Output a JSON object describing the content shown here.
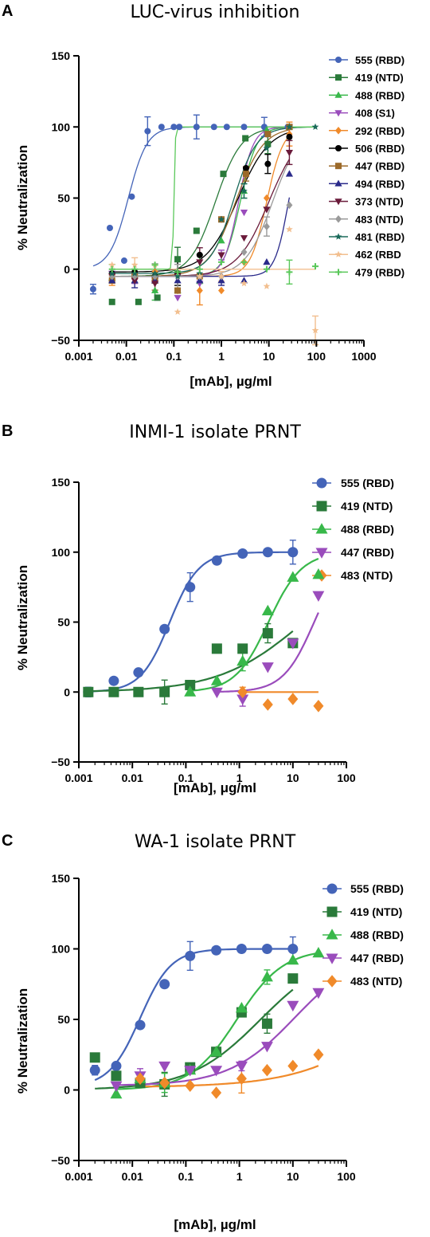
{
  "chart_data": [
    {
      "type": "scatter",
      "panel_label": "A",
      "title": "LUC-virus inhibition",
      "xlabel": "[mAb], µg/ml",
      "ylabel": "% Neutralization",
      "xscale": "log",
      "xlim": [
        0.001,
        1000
      ],
      "ylim": [
        -50,
        150
      ],
      "x_ticks": [
        "0.001",
        "0.01",
        "0.1",
        "1",
        "10",
        "100",
        "1000"
      ],
      "y_ticks": [
        "150",
        "100",
        "50",
        "0",
        "−50"
      ],
      "legend_position": "right",
      "series": [
        {
          "name": "555 (RBD)",
          "color": "#4464b8",
          "marker": "circle",
          "x": [
            0.002,
            0.0045,
            0.009,
            0.013,
            0.028,
            0.055,
            0.1,
            0.13,
            0.3,
            0.7,
            1.3,
            3,
            8,
            25
          ],
          "y": [
            -14,
            29,
            6,
            51,
            97,
            100,
            100,
            100,
            100,
            100,
            100,
            100,
            100,
            100
          ],
          "fit": {
            "bottom": 0,
            "top": 100,
            "ec50": 0.011,
            "hill": 2.2
          }
        },
        {
          "name": "419 (NTD)",
          "color": "#2a7a3a",
          "marker": "square",
          "x": [
            0.005,
            0.018,
            0.045,
            0.12,
            0.3,
            1.1,
            3.2,
            9.5
          ],
          "y": [
            -23,
            -23,
            -20,
            7,
            27,
            67,
            92,
            88
          ],
          "fit": {
            "bottom": -5,
            "top": 100,
            "ec50": 0.75,
            "hill": 1.6
          }
        },
        {
          "name": "488 (RBD)",
          "color": "#38b84a",
          "marker": "triangle",
          "x": [
            0.005,
            0.015,
            0.04,
            0.12,
            0.35,
            1,
            3,
            9,
            27
          ],
          "y": [
            -6,
            -8,
            -15,
            -15,
            -8,
            20,
            55,
            98,
            100
          ],
          "fit": {
            "bottom": -5,
            "top": 100,
            "ec50": 2.5,
            "hill": 2.5
          }
        },
        {
          "name": "408 (S1)",
          "color": "#9a4cbc",
          "marker": "triangle-down",
          "x": [
            0.005,
            0.015,
            0.04,
            0.12,
            0.35,
            1,
            3,
            9,
            27
          ],
          "y": [
            -3,
            -5,
            -8,
            -20,
            -10,
            10,
            40,
            95,
            100
          ],
          "fit": {
            "bottom": -5,
            "top": 100,
            "ec50": 2.3,
            "hill": 2.8
          }
        },
        {
          "name": "292 (RBD)",
          "color": "#f08a2a",
          "marker": "diamond",
          "x": [
            0.005,
            0.015,
            0.04,
            0.12,
            0.35,
            1,
            3,
            9,
            27
          ],
          "y": [
            -8,
            -5,
            -2,
            -15,
            -15,
            -15,
            5,
            50,
            95
          ],
          "fit": {
            "bottom": -5,
            "top": 100,
            "ec50": 9,
            "hill": 2.5
          }
        },
        {
          "name": "506 (RBD)",
          "color": "#000000",
          "marker": "circle",
          "x": [
            0.005,
            0.015,
            0.04,
            0.12,
            0.35,
            1,
            3.3,
            9.5,
            27
          ],
          "y": [
            -3,
            -2,
            -5,
            -3,
            10,
            35,
            71,
            74,
            93
          ],
          "fit": {
            "bottom": -2,
            "top": 100,
            "ec50": 2.2,
            "hill": 1.3
          }
        },
        {
          "name": "447 (RBD)",
          "color": "#9c6a2a",
          "marker": "square",
          "x": [
            0.005,
            0.015,
            0.04,
            0.12,
            0.35,
            1,
            3.3,
            9.5,
            27
          ],
          "y": [
            -8,
            -5,
            -8,
            -15,
            -5,
            35,
            67,
            95,
            100
          ],
          "fit": {
            "bottom": -5,
            "top": 100,
            "ec50": 2,
            "hill": 1.5
          }
        },
        {
          "name": "494 (RBD)",
          "color": "#2a2a8a",
          "marker": "triangle",
          "x": [
            0.005,
            0.015,
            0.04,
            0.12,
            0.35,
            1,
            3,
            9,
            27
          ],
          "y": [
            -8,
            -8,
            -8,
            -8,
            -8,
            -8,
            -8,
            5,
            67
          ],
          "fit": {
            "bottom": -5,
            "top": 100,
            "ec50": 26,
            "hill": 3
          }
        },
        {
          "name": "373 (NTD)",
          "color": "#6a1a3a",
          "marker": "triangle-down",
          "x": [
            0.005,
            0.015,
            0.04,
            0.12,
            0.35,
            1,
            3,
            9,
            27
          ],
          "y": [
            -5,
            -8,
            -10,
            -5,
            5,
            10,
            22,
            42,
            82
          ],
          "fit": {
            "bottom": -5,
            "top": 100,
            "ec50": 10,
            "hill": 1.3
          }
        },
        {
          "name": "483 (NTD)",
          "color": "#9a9a9a",
          "marker": "diamond",
          "x": [
            0.005,
            0.015,
            0.04,
            0.12,
            0.35,
            1,
            3,
            9,
            27
          ],
          "y": [
            -5,
            -5,
            -5,
            -5,
            -5,
            -5,
            12,
            30,
            45
          ],
          "fit": {
            "bottom": -5,
            "top": 100,
            "ec50": 12,
            "hill": 1.5
          }
        },
        {
          "name": "481 (RBD)",
          "color": "#1a6a5a",
          "marker": "star",
          "x": [
            0.005,
            0.015,
            0.04,
            0.12,
            0.35,
            1,
            3,
            9,
            27,
            95
          ],
          "y": [
            -3,
            -3,
            -3,
            -5,
            -3,
            35,
            55,
            85,
            100,
            100
          ],
          "fit": {
            "bottom": -3,
            "top": 100,
            "ec50": 1.8,
            "hill": 1.8
          }
        },
        {
          "name": "462 (RBD",
          "color": "#f2bf8f",
          "marker": "star",
          "x": [
            0.005,
            0.015,
            0.04,
            0.12,
            0.35,
            1,
            3,
            9,
            27,
            95
          ],
          "y": [
            3,
            3,
            3,
            -30,
            -5,
            -5,
            -10,
            -12,
            28,
            -43
          ],
          "fit": {
            "bottom": 0,
            "top": 0,
            "ec50": 1,
            "hill": 1
          }
        },
        {
          "name": "479 (RBD)",
          "color": "#5ac85a",
          "marker": "plus",
          "x": [
            0.005,
            0.015,
            0.04,
            0.12,
            0.35,
            1,
            3,
            9,
            27,
            95
          ],
          "y": [
            0,
            0,
            3,
            -2,
            0,
            5,
            5,
            0,
            -2,
            2
          ],
          "fit": {
            "bottom": 0,
            "top": 100,
            "ec50": 0.1,
            "hill": 30
          }
        }
      ]
    },
    {
      "type": "scatter",
      "panel_label": "B",
      "title": "INMI-1 isolate PRNT",
      "xlabel": "[mAb], μg/ml",
      "ylabel": "% Neutralization",
      "xscale": "log",
      "xlim": [
        0.001,
        100
      ],
      "ylim": [
        -50,
        150
      ],
      "x_ticks": [
        "0.001",
        "0.01",
        "0.1",
        "1",
        "10",
        "100"
      ],
      "y_ticks": [
        "150",
        "100",
        "50",
        "0",
        "−50"
      ],
      "legend_position": "top-right",
      "series": [
        {
          "name": "555 (RBD)",
          "color": "#4464b8",
          "marker": "circle",
          "x": [
            0.0015,
            0.0045,
            0.013,
            0.04,
            0.12,
            0.38,
            1.15,
            3.4,
            10
          ],
          "y": [
            0,
            8,
            14,
            45,
            75,
            94,
            99,
            100,
            100
          ],
          "fit": {
            "bottom": 0,
            "top": 100,
            "ec50": 0.05,
            "hill": 1.6
          }
        },
        {
          "name": "419 (NTD)",
          "color": "#2a7a3a",
          "marker": "square",
          "x": [
            0.0015,
            0.0045,
            0.013,
            0.04,
            0.12,
            0.38,
            1.15,
            3.4,
            10
          ],
          "y": [
            0,
            0,
            0,
            0,
            5,
            31,
            31,
            42,
            35
          ],
          "fit": {
            "bottom": 0,
            "top": 100,
            "ec50": 16,
            "hill": 0.55
          }
        },
        {
          "name": "488 (RBD)",
          "color": "#38b84a",
          "marker": "triangle",
          "x": [
            0.12,
            0.38,
            1.15,
            3.4,
            10,
            30
          ],
          "y": [
            0,
            8,
            22,
            58,
            82,
            84
          ],
          "fit": {
            "bottom": 0,
            "top": 100,
            "ec50": 3.5,
            "hill": 1.4
          }
        },
        {
          "name": "447 (RBD)",
          "color": "#9a4cbc",
          "marker": "triangle-down",
          "x": [
            0.38,
            1.15,
            3.4,
            10,
            30
          ],
          "y": [
            0,
            -5,
            18,
            35,
            69
          ],
          "fit": {
            "bottom": 0,
            "top": 100,
            "ec50": 25,
            "hill": 1.5
          }
        },
        {
          "name": "483 (NTD)",
          "color": "#f08a2a",
          "marker": "diamond",
          "x": [
            1.15,
            3.4,
            10,
            30
          ],
          "y": [
            0,
            -9,
            -5,
            -10
          ],
          "fit": {
            "bottom": 0,
            "top": 0,
            "ec50": 1,
            "hill": 1
          }
        }
      ]
    },
    {
      "type": "scatter",
      "panel_label": "C",
      "title": "WA-1 isolate PRNT",
      "xlabel": "[mAb], µg/ml",
      "ylabel": "% Neutralization",
      "xscale": "log",
      "xlim": [
        0.001,
        100
      ],
      "ylim": [
        -50,
        150
      ],
      "x_ticks": [
        "0.001",
        "0.01",
        "0.1",
        "1",
        "10",
        "100"
      ],
      "y_ticks": [
        "150",
        "100",
        "50",
        "0",
        "−50"
      ],
      "legend_position": "top-right",
      "series": [
        {
          "name": "555 (RBD)",
          "color": "#4464b8",
          "marker": "circle",
          "x": [
            0.002,
            0.005,
            0.014,
            0.04,
            0.12,
            0.37,
            1.1,
            3.3,
            10
          ],
          "y": [
            14,
            17,
            46,
            75,
            95,
            99,
            100,
            100,
            100
          ],
          "fit": {
            "bottom": 2,
            "top": 100,
            "ec50": 0.014,
            "hill": 1.5
          }
        },
        {
          "name": "419 (NTD)",
          "color": "#2a7a3a",
          "marker": "square",
          "x": [
            0.002,
            0.005,
            0.014,
            0.04,
            0.12,
            0.37,
            1.1,
            3.3,
            10
          ],
          "y": [
            23,
            10,
            5,
            4,
            16,
            27,
            55,
            47,
            79
          ],
          "fit": {
            "bottom": 0,
            "top": 100,
            "ec50": 2.5,
            "hill": 0.65
          }
        },
        {
          "name": "488 (RBD)",
          "color": "#38b84a",
          "marker": "triangle",
          "x": [
            0.005,
            0.014,
            0.04,
            0.12,
            0.37,
            1.1,
            3.3,
            10,
            30
          ],
          "y": [
            -3,
            8,
            5,
            14,
            27,
            58,
            80,
            92,
            97
          ],
          "fit": {
            "bottom": 0,
            "top": 100,
            "ec50": 0.9,
            "hill": 1.0
          }
        },
        {
          "name": "447 (RBD)",
          "color": "#9a4cbc",
          "marker": "triangle-down",
          "x": [
            0.005,
            0.014,
            0.04,
            0.12,
            0.37,
            1.1,
            3.3,
            10,
            30
          ],
          "y": [
            3,
            10,
            17,
            14,
            14,
            17,
            31,
            60,
            69
          ],
          "fit": {
            "bottom": 3,
            "top": 100,
            "ec50": 11,
            "hill": 0.7
          }
        },
        {
          "name": "483 (NTD)",
          "color": "#f08a2a",
          "marker": "diamond",
          "x": [
            0.014,
            0.04,
            0.12,
            0.37,
            1.1,
            3.3,
            10,
            30
          ],
          "y": [
            8,
            5,
            3,
            -2,
            8,
            14,
            17,
            25
          ],
          "fit": {
            "bottom": 2,
            "top": 100,
            "ec50": 900,
            "hill": 0.5
          }
        }
      ]
    }
  ]
}
